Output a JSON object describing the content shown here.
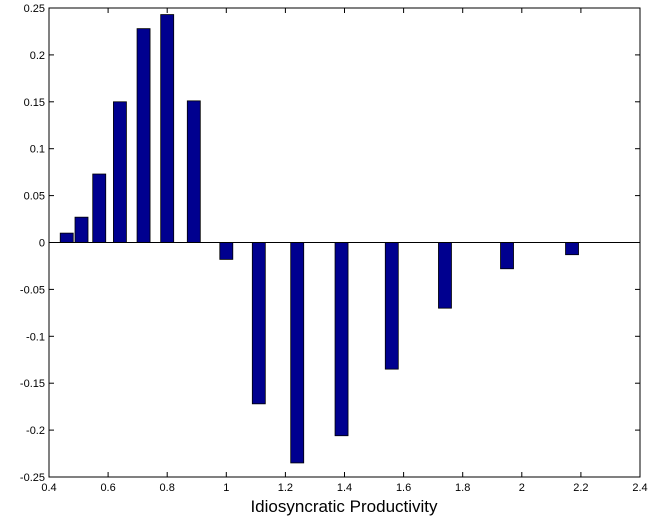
{
  "chart_data": {
    "type": "bar",
    "xlabel": "Idiosyncratic Productivity",
    "x": [
      0.46,
      0.51,
      0.57,
      0.64,
      0.72,
      0.8,
      0.89,
      1.0,
      1.11,
      1.24,
      1.39,
      1.56,
      1.74,
      1.95,
      2.17
    ],
    "values": [
      0.01,
      0.027,
      0.073,
      0.15,
      0.228,
      0.243,
      0.151,
      -0.018,
      -0.172,
      -0.235,
      -0.206,
      -0.135,
      -0.07,
      -0.028,
      -0.013
    ],
    "color": "#00008f",
    "xlim": [
      0.4,
      2.4
    ],
    "xticks": [
      0.4,
      0.6,
      0.8,
      1,
      1.2,
      1.4,
      1.6,
      1.8,
      2,
      2.2,
      2.4
    ],
    "ylim": [
      -0.25,
      0.25
    ],
    "yticks": [
      -0.25,
      -0.2,
      -0.15,
      -0.1,
      -0.05,
      0,
      0.05,
      0.1,
      0.15,
      0.2,
      0.25
    ]
  }
}
